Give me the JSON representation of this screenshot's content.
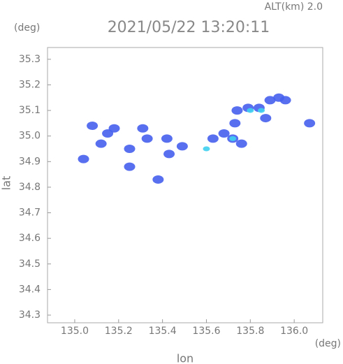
{
  "chart_data": {
    "type": "scatter",
    "title": "2021/05/22 13:20:11",
    "subtitle": "ALT(km) 2.0",
    "y_unit": "(deg)",
    "x_unit": "(deg)",
    "x_label": "lon",
    "y_label": "lat",
    "xlim": [
      134.876,
      136.13
    ],
    "ylim": [
      34.27,
      35.346
    ],
    "xticks": [
      {
        "value": 135,
        "label": "135.0"
      },
      135.2,
      135.4,
      135.6,
      135.8,
      {
        "value": 136,
        "label": "136.0"
      }
    ],
    "yticks": [
      34.3,
      34.4,
      34.5,
      34.6,
      34.7,
      34.8,
      34.9,
      {
        "value": 35,
        "label": "35.0"
      },
      35.1,
      35.2,
      35.3
    ],
    "grid": false,
    "series": [
      {
        "color": "#4660ee",
        "x": [
          135.08,
          135.04,
          135.15,
          135.18,
          135.12,
          135.25,
          135.31,
          135.33,
          135.42,
          135.43,
          135.49,
          135.63,
          135.68,
          135.72,
          135.76,
          135.73,
          135.74,
          135.79,
          135.84,
          135.89,
          135.93,
          135.96,
          135.87,
          136.07,
          135.38,
          135.25
        ],
        "values": [
          35.04,
          34.91,
          35.01,
          35.03,
          34.97,
          34.95,
          35.03,
          34.99,
          34.99,
          34.93,
          34.96,
          34.99,
          35.01,
          34.99,
          34.97,
          35.05,
          35.1,
          35.11,
          35.11,
          35.14,
          35.15,
          35.14,
          35.07,
          35.05,
          34.83,
          34.88
        ]
      },
      {
        "color": "#3fd0f0",
        "x": [
          135.6,
          135.72,
          135.8,
          135.85
        ],
        "values": [
          34.95,
          34.99,
          35.1,
          35.1
        ]
      }
    ]
  }
}
